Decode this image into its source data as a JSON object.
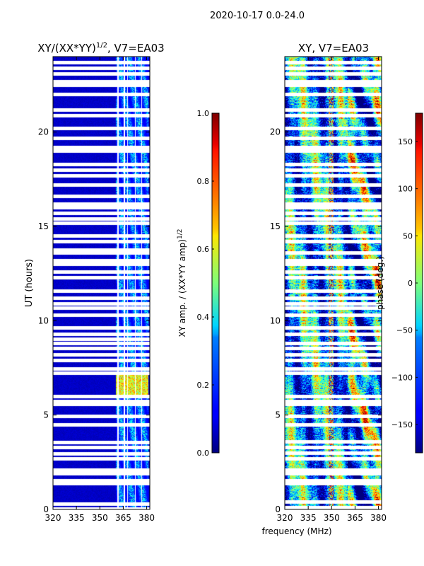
{
  "figure": {
    "suptitle": "2020-10-17 0.0-24.0",
    "xlabel": "frequency (MHz)"
  },
  "chart_data": [
    {
      "type": "heatmap",
      "title_base": "XY/(XX*YY)",
      "title_exponent": "1/2",
      "title_suffix": ", V7=EA03",
      "xlabel": "",
      "ylabel": "UT (hours)",
      "xlim": [
        320,
        382
      ],
      "ylim": [
        0,
        24
      ],
      "xticks": [
        320,
        335,
        350,
        365,
        380
      ],
      "yticks": [
        0,
        5,
        10,
        15,
        20
      ],
      "colorbar": {
        "label_base": "XY amp. / (XX*YY amp)",
        "label_exponent": "1/2",
        "min": 0.0,
        "max": 1.0,
        "ticks": [
          0.0,
          0.2,
          0.4,
          0.6,
          0.8,
          1.0
        ],
        "tick_labels": [
          "0.0",
          "0.2",
          "0.4",
          "0.6",
          "0.8",
          "1.0"
        ],
        "colormap": "jet"
      },
      "pattern": {
        "baseline_value": 0.05,
        "active_band_mhz": [
          360,
          381
        ],
        "active_value": 0.35,
        "bright_time_range_ut": [
          6.0,
          7.2
        ],
        "bright_value": 0.78,
        "flagged_utc_rows": [
          0.05,
          0.3,
          1.4,
          1.55,
          1.9,
          2.1,
          2.7,
          2.95,
          3.3,
          3.55,
          4.5,
          4.95,
          5.6,
          5.75,
          6.0,
          7.25,
          7.45,
          7.9,
          8.2,
          8.55,
          8.8,
          9.05,
          9.3,
          9.65,
          10.3,
          10.7,
          10.9,
          11.2,
          11.6,
          12.3,
          12.6,
          13.0,
          13.2,
          13.6,
          13.75,
          14.2,
          14.5,
          15.2,
          15.4,
          15.7,
          16.0,
          16.2,
          16.6,
          17.2,
          17.7,
          18.0,
          18.3,
          19.0,
          19.2,
          19.7,
          20.2,
          20.9,
          21.2,
          22.0,
          22.5,
          22.7,
          23.1,
          23.4,
          23.7
        ],
        "flagged_channels_mhz": [
          361.5,
          365.5,
          367.5,
          372.5,
          376.5
        ]
      }
    },
    {
      "type": "heatmap",
      "title": "XY, V7=EA03",
      "xlabel": "frequency (MHz)",
      "ylabel": "",
      "xlim": [
        320,
        382
      ],
      "ylim": [
        0,
        24
      ],
      "xticks": [
        320,
        335,
        350,
        365,
        380
      ],
      "yticks": [
        0,
        5,
        10,
        15,
        20
      ],
      "colorbar": {
        "label": "phase (deg.)",
        "min": -180,
        "max": 180,
        "ticks": [
          -150,
          -100,
          -50,
          0,
          50,
          100,
          150
        ],
        "tick_labels": [
          "−150",
          "−100",
          "−50",
          "0",
          "50",
          "100",
          "150"
        ],
        "colormap": "jet"
      },
      "pattern": {
        "noise": "random phase with smooth gradient and frequency-dependent features",
        "rfi_channel_mhz": [
          348,
          351
        ],
        "flagged_utc_rows": [
          0.1,
          0.4,
          1.4,
          1.55,
          1.9,
          2.1,
          2.7,
          3.0,
          3.3,
          3.6,
          4.5,
          4.95,
          5.6,
          5.75,
          6.0,
          7.25,
          7.45,
          7.9,
          8.2,
          8.55,
          8.8,
          9.3,
          9.65,
          10.3,
          10.7,
          10.9,
          11.2,
          11.6,
          12.3,
          12.6,
          13.0,
          13.2,
          13.6,
          14.2,
          14.5,
          15.2,
          15.4,
          15.7,
          16.0,
          16.2,
          16.6,
          17.2,
          17.7,
          18.0,
          18.3,
          19.0,
          19.2,
          19.7,
          20.2,
          20.9,
          21.2,
          22.0,
          22.5,
          22.7,
          23.1,
          23.4,
          23.7
        ]
      }
    }
  ]
}
